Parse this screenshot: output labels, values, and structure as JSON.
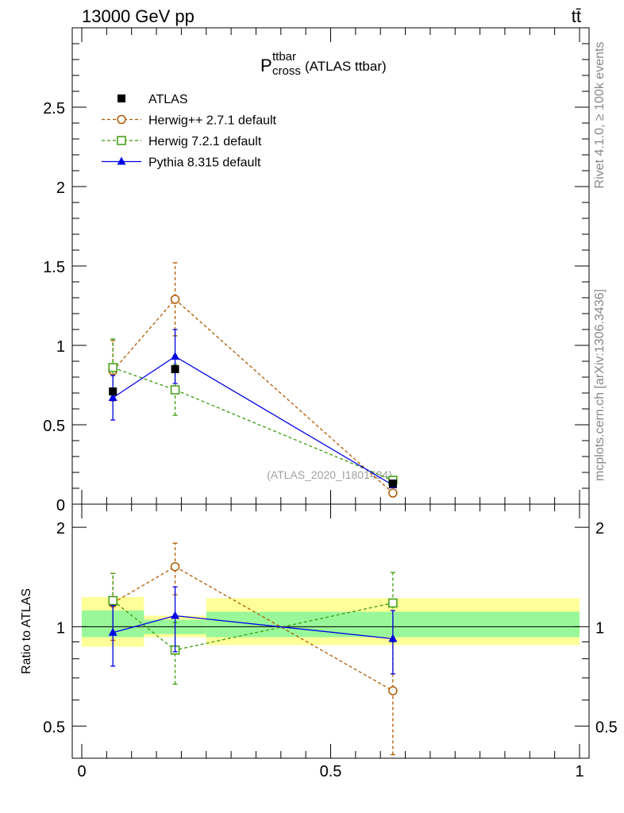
{
  "header": {
    "energy_label": "13000 GeV pp",
    "process_label": "tt̄"
  },
  "side_labels": {
    "rivet": "Rivet 4.1.0, ≥ 100k events",
    "source": "mcplots.cern.ch [arXiv:1306.3436]"
  },
  "chart_data": {
    "type": "scatter",
    "title_main": "P",
    "title_sup": "ttbar",
    "title_sub": "cross",
    "title_tail": "(ATLAS ttbar)",
    "watermark": "(ATLAS_2020_I1801434)",
    "x": [
      0.0625,
      0.1875,
      0.625
    ],
    "bins": [
      [
        0.0,
        0.125
      ],
      [
        0.125,
        0.25
      ],
      [
        0.25,
        1.0
      ]
    ],
    "xlim": [
      0,
      1
    ],
    "main": {
      "ylim": [
        0,
        3.0
      ],
      "yticks": [
        0,
        0.5,
        1,
        1.5,
        2,
        2.5
      ],
      "ytick_labels": [
        "0",
        "0.5",
        "1",
        "1.5",
        "2",
        "2.5"
      ]
    },
    "ratio": {
      "ylabel": "Ratio to ATLAS",
      "ylim": [
        0.4,
        2.35
      ],
      "yticks": [
        0.5,
        1,
        2
      ],
      "ytick_labels": [
        "0.5",
        "1",
        "2"
      ],
      "band_outer": [
        [
          0.87,
          1.23
        ],
        [
          0.93,
          1.08
        ],
        [
          0.88,
          1.22
        ]
      ],
      "band_inner": [
        [
          0.93,
          1.12
        ],
        [
          0.95,
          1.05
        ],
        [
          0.93,
          1.11
        ]
      ]
    },
    "xticks": [
      0,
      0.5,
      1
    ],
    "xtick_labels": [
      "0",
      "0.5",
      "1"
    ],
    "series": [
      {
        "name": "ATLAS",
        "color": "#000000",
        "marker": "square-filled",
        "dash": "none",
        "values": [
          0.71,
          0.85,
          0.13
        ],
        "errors": [
          0,
          0,
          0
        ],
        "ratio": [
          1.0,
          1.0,
          1.0
        ],
        "ratio_errors": [
          0,
          0,
          0
        ]
      },
      {
        "name": "Herwig++ 2.7.1 default",
        "color": "#b05a00",
        "marker": "circle-open",
        "dash": "dashed",
        "values": [
          0.84,
          1.29,
          0.07
        ],
        "errors": [
          0.19,
          0.23,
          0.0
        ],
        "ratio": [
          1.18,
          1.52,
          0.64
        ],
        "ratio_errors": [
          0.27,
          0.27,
          0.28
        ]
      },
      {
        "name": "Herwig 7.2.1 default",
        "color": "#3c9b0f",
        "marker": "square-open",
        "dash": "dashed",
        "values": [
          0.86,
          0.72,
          0.15
        ],
        "errors": [
          0.18,
          0.16,
          0.0
        ],
        "ratio": [
          1.2,
          0.85,
          1.18
        ],
        "ratio_errors": [
          0.25,
          0.18,
          0.28
        ]
      },
      {
        "name": "Pythia 8.315 default",
        "color": "#0000e6",
        "marker": "triangle-filled",
        "dash": "none",
        "values": [
          0.67,
          0.93,
          0.12
        ],
        "errors": [
          0.14,
          0.17,
          0.0
        ],
        "ratio": [
          0.96,
          1.08,
          0.92
        ],
        "ratio_errors": [
          0.2,
          0.24,
          0.2
        ]
      }
    ]
  }
}
